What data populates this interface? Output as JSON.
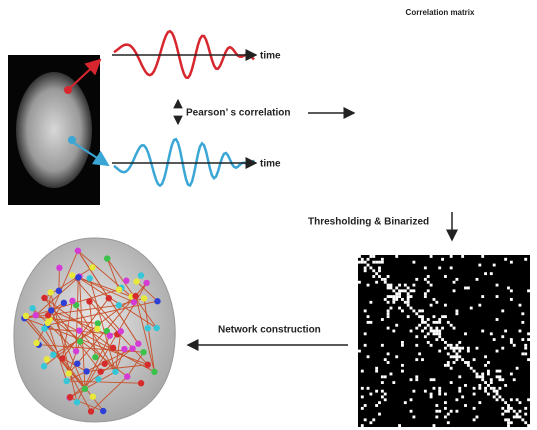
{
  "labels": {
    "time_top": "time",
    "time_bottom": "time",
    "pearson": "Pearson’ s correlation",
    "matrix_title": "Correlation matrix",
    "thresholding": "Thresholding & Binarized",
    "network": "Network construction"
  }
}
